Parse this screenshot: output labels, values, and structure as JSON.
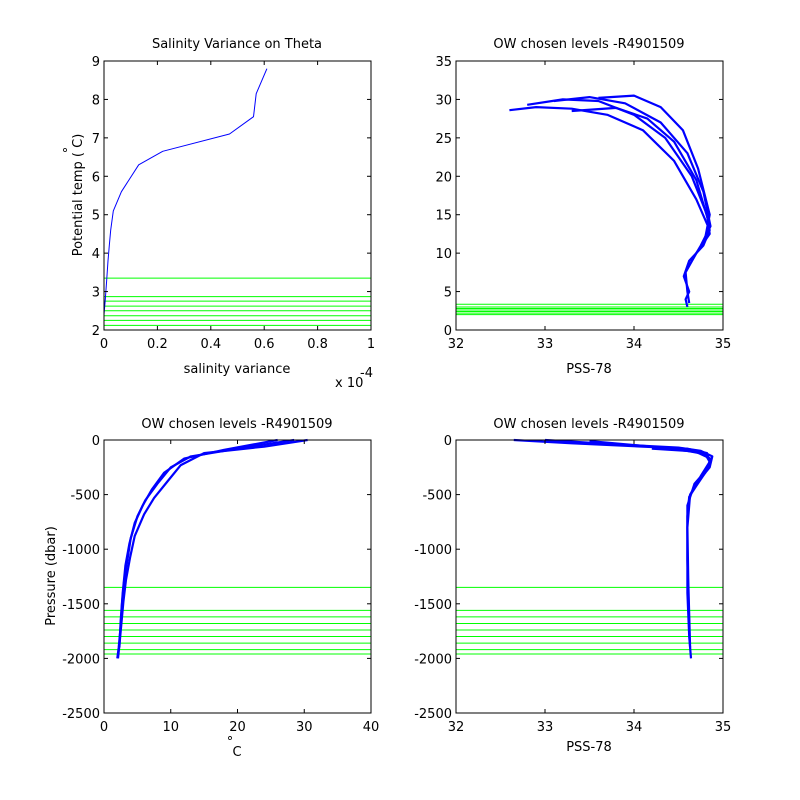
{
  "chart_data": [
    {
      "type": "line",
      "title": "Salinity Variance on Theta",
      "xlabel": "salinity variance",
      "ylabel": "Potential temp ( C)",
      "ylabel_degree": "°",
      "x_multiplier": "x 10",
      "x_multiplier_exp": "-4",
      "xlim": [
        0,
        1
      ],
      "ylim": [
        2,
        9
      ],
      "xticks": [
        "0",
        "0.2",
        "0.4",
        "0.6",
        "0.8",
        "1"
      ],
      "yticks": [
        "2",
        "3",
        "4",
        "5",
        "6",
        "7",
        "8",
        "9"
      ],
      "colors": {
        "profile": "#0000ff",
        "levels": "#00ff00"
      },
      "series": [
        {
          "x": [
            0.0,
            0.005,
            0.01,
            0.015,
            0.02,
            0.025,
            0.035,
            0.065,
            0.13,
            0.22,
            0.47,
            0.56,
            0.57,
            0.61
          ],
          "y": [
            2.4,
            2.8,
            3.3,
            3.8,
            4.2,
            4.6,
            5.1,
            5.6,
            6.3,
            6.65,
            7.1,
            7.55,
            8.15,
            8.8
          ]
        }
      ],
      "hlines": [
        2.12,
        2.25,
        2.37,
        2.5,
        2.62,
        2.75,
        2.87,
        3.35
      ]
    },
    {
      "type": "line",
      "title": "OW chosen levels -R4901509",
      "xlabel": "PSS-78",
      "ylabel": "",
      "xlim": [
        32,
        35
      ],
      "ylim": [
        0,
        35
      ],
      "xticks": [
        "32",
        "33",
        "34",
        "35"
      ],
      "yticks": [
        "0",
        "5",
        "10",
        "15",
        "20",
        "25",
        "30",
        "35"
      ],
      "colors": {
        "profile": "#0000ff",
        "levels": "#00ff00"
      },
      "series": [
        {
          "x": [
            32.6,
            32.9,
            33.3,
            33.7,
            34.1,
            34.45,
            34.7,
            34.85,
            34.78,
            34.62,
            34.56,
            34.62,
            34.58,
            34.6
          ],
          "y": [
            28.6,
            29.0,
            28.8,
            28.0,
            26.0,
            22.0,
            17.0,
            13.0,
            11.0,
            9.0,
            7.0,
            5.0,
            4.0,
            3.0
          ]
        },
        {
          "x": [
            32.8,
            33.2,
            33.6,
            34.0,
            34.35,
            34.65,
            34.82,
            34.85,
            34.7,
            34.58,
            34.6,
            34.62
          ],
          "y": [
            29.3,
            30.0,
            29.8,
            28.0,
            25.0,
            20.0,
            15.0,
            12.5,
            10.0,
            7.5,
            5.0,
            3.5
          ]
        },
        {
          "x": [
            33.1,
            33.5,
            33.9,
            34.3,
            34.6,
            34.78,
            34.86,
            34.75,
            34.6
          ],
          "y": [
            29.8,
            30.3,
            29.5,
            27.0,
            23.0,
            18.0,
            13.5,
            11.0,
            8.0
          ]
        },
        {
          "x": [
            33.6,
            34.0,
            34.3,
            34.55,
            34.72,
            34.85,
            34.8
          ],
          "y": [
            30.2,
            30.5,
            29.0,
            26.0,
            21.0,
            15.0,
            12.0
          ]
        },
        {
          "x": [
            33.3,
            33.8,
            34.15,
            34.45,
            34.7,
            34.84
          ],
          "y": [
            28.5,
            28.9,
            27.5,
            24.5,
            19.5,
            14.0
          ]
        }
      ],
      "hlines": [
        2.0,
        2.2,
        2.4,
        2.6,
        2.8,
        3.0,
        3.35
      ]
    },
    {
      "type": "line",
      "title": "OW chosen levels -R4901509",
      "xlabel": " C",
      "xlabel_degree": "°",
      "ylabel": "Pressure (dbar)",
      "xlim": [
        0,
        40
      ],
      "ylim": [
        -2500,
        0
      ],
      "xticks": [
        "0",
        "10",
        "20",
        "30",
        "40"
      ],
      "yticks": [
        "-2500",
        "-2000",
        "-1500",
        "-1000",
        "-500",
        "0"
      ],
      "colors": {
        "profile": "#0000ff",
        "levels": "#00ff00"
      },
      "series": [
        {
          "x": [
            28.5,
            20.0,
            13.0,
            10.0,
            8.0,
            6.2,
            5.0,
            4.0,
            3.5,
            3.0,
            2.7,
            2.5,
            2.2,
            2.0
          ],
          "y": [
            0,
            -80,
            -150,
            -250,
            -400,
            -550,
            -700,
            -900,
            -1100,
            -1300,
            -1500,
            -1700,
            -1900,
            -2000
          ]
        },
        {
          "x": [
            30.5,
            24.0,
            15.0,
            11.5,
            9.5,
            7.5,
            6.0,
            4.6,
            3.9,
            3.3,
            2.9,
            2.6,
            2.3,
            2.1
          ],
          "y": [
            0,
            -60,
            -120,
            -230,
            -380,
            -530,
            -680,
            -880,
            -1080,
            -1280,
            -1480,
            -1680,
            -1880,
            -2000
          ]
        },
        {
          "x": [
            26.0,
            18.0,
            12.0,
            9.0,
            7.2,
            5.8,
            4.6,
            3.8,
            3.2,
            2.8,
            2.5,
            2.3
          ],
          "y": [
            0,
            -90,
            -170,
            -300,
            -450,
            -600,
            -760,
            -950,
            -1150,
            -1400,
            -1650,
            -1900
          ]
        }
      ],
      "hlines": [
        -1350,
        -1560,
        -1620,
        -1680,
        -1740,
        -1800,
        -1860,
        -1920,
        -1960
      ]
    },
    {
      "type": "line",
      "title": "OW chosen levels -R4901509",
      "xlabel": "PSS-78",
      "ylabel": "",
      "xlim": [
        32,
        35
      ],
      "ylim": [
        -2500,
        0
      ],
      "xticks": [
        "32",
        "33",
        "34",
        "35"
      ],
      "yticks": [
        "-2500",
        "-2000",
        "-1500",
        "-1000",
        "-500",
        "0"
      ],
      "colors": {
        "profile": "#0000ff",
        "levels": "#00ff00"
      },
      "series": [
        {
          "x": [
            32.65,
            33.3,
            34.1,
            34.6,
            34.82,
            34.85,
            34.8,
            34.7,
            34.62,
            34.6,
            34.6,
            34.6,
            34.62,
            34.64
          ],
          "y": [
            0,
            -30,
            -60,
            -80,
            -120,
            -200,
            -300,
            -420,
            -520,
            -700,
            -1000,
            -1400,
            -1800,
            -2000
          ]
        },
        {
          "x": [
            33.0,
            33.8,
            34.5,
            34.75,
            34.88,
            34.85,
            34.72,
            34.63,
            34.6,
            34.61,
            34.63
          ],
          "y": [
            0,
            -40,
            -70,
            -100,
            -150,
            -250,
            -380,
            -500,
            -800,
            -1300,
            -1900
          ]
        },
        {
          "x": [
            33.5,
            34.2,
            34.7,
            34.86,
            34.82,
            34.68,
            34.6,
            34.6,
            34.62
          ],
          "y": [
            -10,
            -60,
            -110,
            -170,
            -270,
            -400,
            -600,
            -1100,
            -1700
          ]
        },
        {
          "x": [
            34.2,
            34.6,
            34.8,
            34.85,
            34.75,
            34.65
          ],
          "y": [
            -80,
            -100,
            -130,
            -200,
            -330,
            -480
          ]
        }
      ],
      "hlines": [
        -1350,
        -1560,
        -1620,
        -1680,
        -1740,
        -1800,
        -1860,
        -1920,
        -1960
      ]
    }
  ]
}
